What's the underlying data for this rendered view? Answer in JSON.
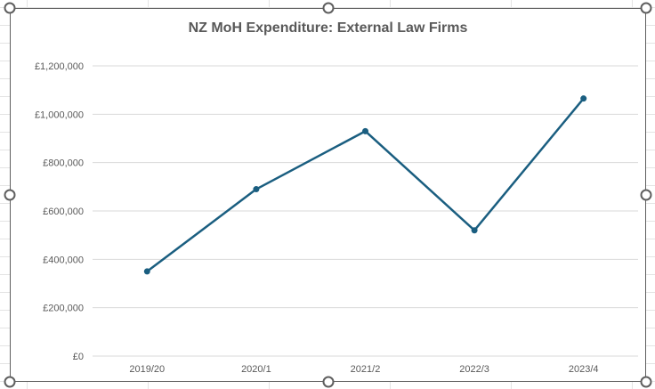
{
  "chart_data": {
    "type": "line",
    "title": "NZ MoH Expenditure: External Law Firms",
    "categories": [
      "2019/20",
      "2020/1",
      "2021/2",
      "2022/3",
      "2023/4"
    ],
    "series": [
      {
        "values": [
          350000,
          690000,
          930000,
          520000,
          1065000
        ],
        "color": "#1a5e80"
      }
    ],
    "ylim": [
      0,
      1200000
    ],
    "yticks": [
      0,
      200000,
      400000,
      600000,
      800000,
      1000000,
      1200000
    ],
    "ytick_labels": [
      "£0",
      "£200,000",
      "£400,000",
      "£600,000",
      "£800,000",
      "£1,000,000",
      "£1,200,000"
    ],
    "grid": true,
    "legend": "none",
    "markers": true
  }
}
